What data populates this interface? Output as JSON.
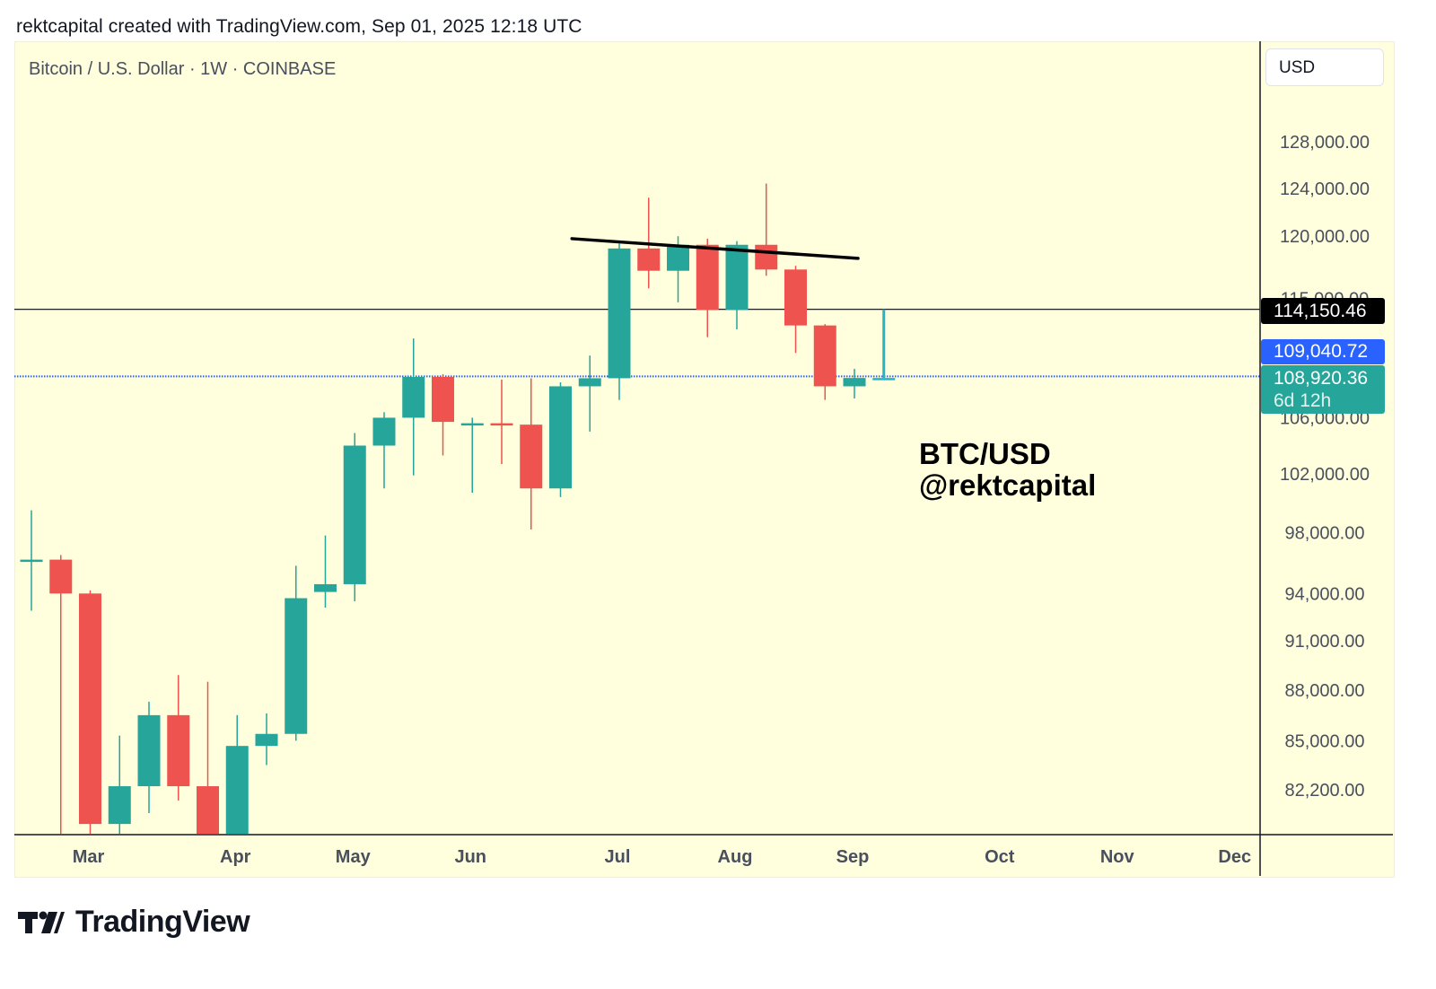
{
  "header": {
    "credit": "rektcapital created with TradingView.com, Sep 01, 2025 12:18 UTC"
  },
  "chart_header": {
    "symbol_title": "Bitcoin / U.S. Dollar · 1W · COINBASE",
    "currency": "USD"
  },
  "price_tags": {
    "current": "114,150.46",
    "blue": "109,040.72",
    "last": "108,920.36",
    "countdown": "6d 12h"
  },
  "annotation": {
    "line1": "BTC/USD",
    "line2": "@rektcapital"
  },
  "branding": {
    "name": "TradingView"
  },
  "colors": {
    "up": "#26a69a",
    "down": "#ef5350",
    "background": "#ffffde",
    "blue_line": "#2962ff"
  },
  "chart_data": {
    "type": "candlestick",
    "title": "Bitcoin / U.S. Dollar · 1W · COINBASE",
    "y_axis": {
      "scale": "log",
      "ticks": [
        128000,
        124000,
        120000,
        115000,
        106000,
        102000,
        98000,
        94000,
        91000,
        88000,
        85000,
        82200
      ],
      "tick_labels": [
        "128,000.00",
        "124,000.00",
        "120,000.00",
        "115,000.00",
        "106,000.00",
        "102,000.00",
        "98,000.00",
        "94,000.00",
        "91,000.00",
        "88,000.00",
        "85,000.00",
        "82,200.00"
      ]
    },
    "x_axis": {
      "labels": [
        {
          "label": "Mar",
          "week": 2
        },
        {
          "label": "Apr",
          "week": 7
        },
        {
          "label": "May",
          "week": 11
        },
        {
          "label": "Jun",
          "week": 15
        },
        {
          "label": "Jul",
          "week": 20
        },
        {
          "label": "Aug",
          "week": 24
        },
        {
          "label": "Sep",
          "week": 28
        },
        {
          "label": "Oct",
          "week": 33
        },
        {
          "label": "Nov",
          "week": 37
        },
        {
          "label": "Dec",
          "week": 41
        }
      ]
    },
    "candles": [
      {
        "o": 96200,
        "h": 99500,
        "l": 92900,
        "c": 96200
      },
      {
        "o": 96200,
        "h": 96500,
        "l": 78200,
        "c": 94000
      },
      {
        "o": 94000,
        "h": 94200,
        "l": 78300,
        "c": 80300
      },
      {
        "o": 80300,
        "h": 85300,
        "l": 78300,
        "c": 82400
      },
      {
        "o": 82400,
        "h": 87300,
        "l": 80900,
        "c": 86500
      },
      {
        "o": 86500,
        "h": 88900,
        "l": 81600,
        "c": 82400
      },
      {
        "o": 82400,
        "h": 88500,
        "l": 74500,
        "c": 78500
      },
      {
        "o": 78500,
        "h": 86500,
        "l": 74600,
        "c": 84700
      },
      {
        "o": 84700,
        "h": 86600,
        "l": 83600,
        "c": 85400
      },
      {
        "o": 85400,
        "h": 95800,
        "l": 85000,
        "c": 93700
      },
      {
        "o": 94100,
        "h": 97800,
        "l": 93100,
        "c": 94600
      },
      {
        "o": 94600,
        "h": 104900,
        "l": 93500,
        "c": 104000
      },
      {
        "o": 104000,
        "h": 106400,
        "l": 101000,
        "c": 106000
      },
      {
        "o": 106000,
        "h": 111900,
        "l": 101900,
        "c": 109000
      },
      {
        "o": 109000,
        "h": 109200,
        "l": 103300,
        "c": 105700
      },
      {
        "o": 105600,
        "h": 106000,
        "l": 100700,
        "c": 105600
      },
      {
        "o": 105600,
        "h": 108800,
        "l": 102700,
        "c": 105500
      },
      {
        "o": 105500,
        "h": 108900,
        "l": 98200,
        "c": 101000
      },
      {
        "o": 101000,
        "h": 108600,
        "l": 100400,
        "c": 108300
      },
      {
        "o": 108300,
        "h": 110600,
        "l": 105000,
        "c": 108900
      },
      {
        "o": 108900,
        "h": 119400,
        "l": 107300,
        "c": 119000
      },
      {
        "o": 119000,
        "h": 123200,
        "l": 115800,
        "c": 117200
      },
      {
        "o": 117200,
        "h": 120000,
        "l": 114700,
        "c": 119300
      },
      {
        "o": 119300,
        "h": 119800,
        "l": 112000,
        "c": 114100
      },
      {
        "o": 114100,
        "h": 119600,
        "l": 112600,
        "c": 119300
      },
      {
        "o": 119300,
        "h": 124400,
        "l": 116800,
        "c": 117300
      },
      {
        "o": 117300,
        "h": 117600,
        "l": 110800,
        "c": 112900
      },
      {
        "o": 112900,
        "h": 113000,
        "l": 107300,
        "c": 108300
      },
      {
        "o": 108300,
        "h": 109600,
        "l": 107400,
        "c": 108920
      },
      {
        "o": 108920,
        "h": 114150,
        "l": 108920,
        "c": 108920
      }
    ],
    "horizontal_lines": [
      {
        "name": "current-price-line",
        "value": 114150.46,
        "color": "#000000",
        "style": "solid"
      },
      {
        "name": "blue-price-line",
        "value": 109040.72,
        "color": "#2962ff",
        "style": "dotted"
      }
    ],
    "trendline": {
      "from": {
        "week": 19,
        "value": 119800
      },
      "to": {
        "week": 28,
        "value": 118200
      },
      "color": "#000000"
    },
    "grid": false,
    "legend": "none"
  }
}
